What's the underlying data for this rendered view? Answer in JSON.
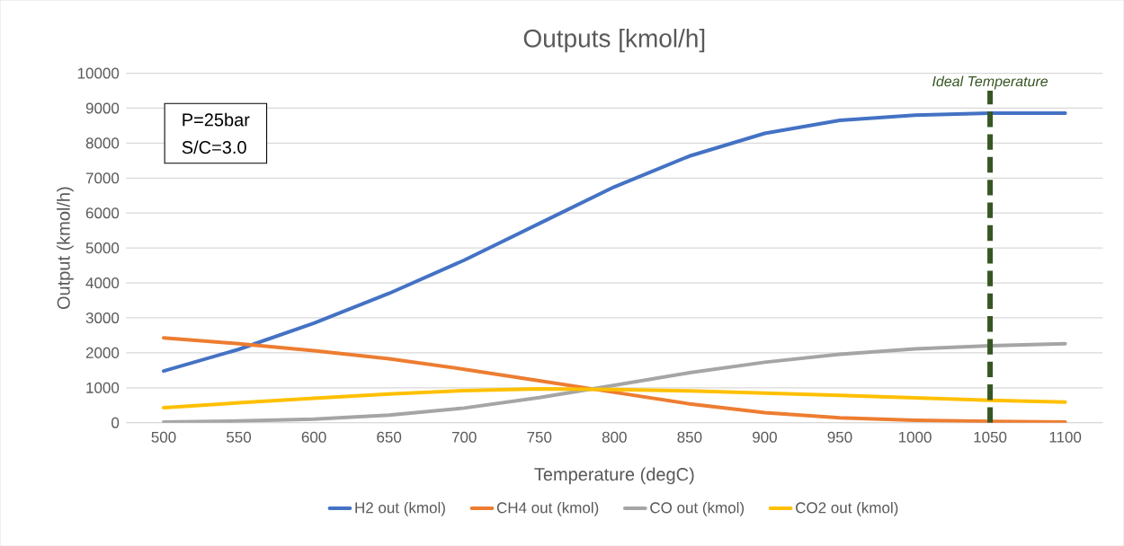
{
  "chart_data": {
    "type": "line",
    "title": "Outputs [kmol/h]",
    "xlabel": "Temperature (degC)",
    "ylabel": "Output (kmol/h)",
    "x": [
      500,
      550,
      600,
      650,
      700,
      750,
      800,
      850,
      900,
      950,
      1000,
      1050,
      1100
    ],
    "series": [
      {
        "name": "H2 out (kmol)",
        "color": "#4472c4",
        "values": [
          1480,
          2100,
          2850,
          3700,
          4650,
          5700,
          6750,
          7630,
          8280,
          8650,
          8800,
          8860,
          8860
        ]
      },
      {
        "name": "CH4 out (kmol)",
        "color": "#ed7d31",
        "values": [
          2430,
          2260,
          2060,
          1830,
          1530,
          1200,
          870,
          540,
          290,
          140,
          70,
          40,
          20
        ]
      },
      {
        "name": "CO out (kmol)",
        "color": "#a5a5a5",
        "values": [
          20,
          50,
          100,
          220,
          420,
          720,
          1070,
          1430,
          1730,
          1960,
          2110,
          2200,
          2260
        ]
      },
      {
        "name": "CO2 out (kmol)",
        "color": "#ffc000",
        "values": [
          430,
          570,
          700,
          820,
          920,
          970,
          950,
          910,
          850,
          780,
          710,
          640,
          590
        ]
      }
    ],
    "xlim": [
      475,
      1125
    ],
    "xticks": [
      500,
      550,
      600,
      650,
      700,
      750,
      800,
      850,
      900,
      950,
      1000,
      1050,
      1100
    ],
    "ylim": [
      0,
      10000
    ],
    "yticks": [
      0,
      1000,
      2000,
      3000,
      4000,
      5000,
      6000,
      7000,
      8000,
      9000,
      10000
    ],
    "ref_lines": [
      {
        "axis": "x",
        "value": 1050,
        "label": "Ideal Temperature",
        "color": "#375623",
        "line_style": "dashed"
      }
    ],
    "annotations": [
      "P=25bar",
      "S/C=3.0"
    ],
    "grid": "y",
    "legend": "bottom",
    "line_style": "solid"
  }
}
